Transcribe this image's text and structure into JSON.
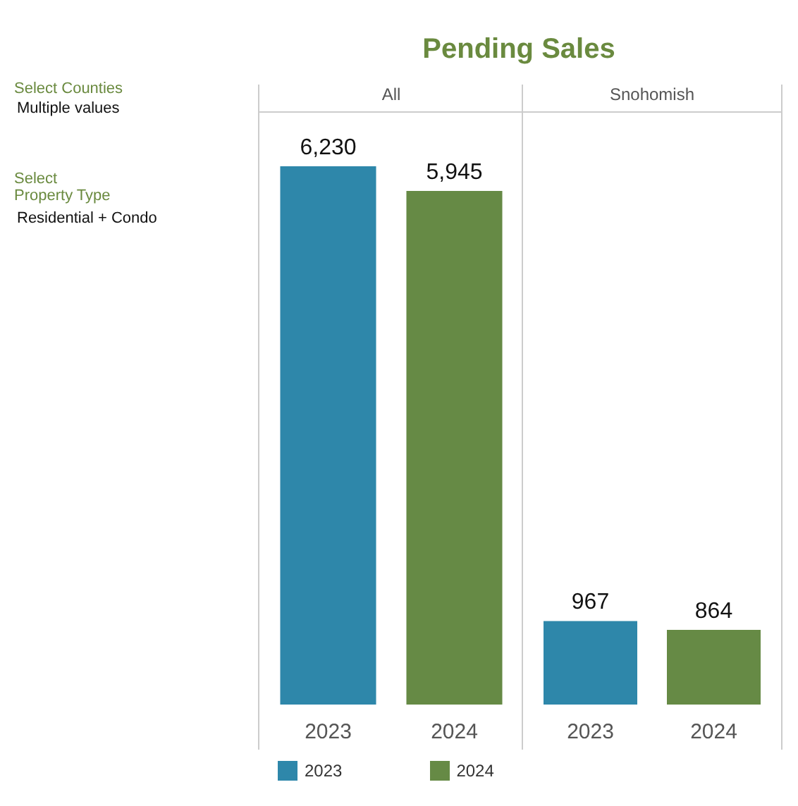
{
  "chart_data": [
    {
      "type": "bar",
      "title": "Pending Sales",
      "subtitle": "All",
      "categories": [
        "2023",
        "2024"
      ],
      "series": [
        {
          "name": "2023",
          "color": "#2e87aa",
          "values": [
            6230,
            null
          ],
          "value_labels": [
            "6,230",
            null
          ]
        },
        {
          "name": "2024",
          "color": "#668a45",
          "values": [
            null,
            5945
          ],
          "value_labels": [
            null,
            "5,945"
          ]
        }
      ],
      "tick_labels": "x",
      "grid": false,
      "legend": "bottom",
      "annotations": [
        "Select Counties",
        "Multiple values",
        "Select\nProperty Type",
        "Residential + Condo"
      ]
    },
    {
      "type": "bar",
      "subtitle": "Snohomish",
      "categories": [
        "2023",
        "2024"
      ],
      "series": [
        {
          "color": "#2e87aa",
          "values": [
            967,
            null
          ],
          "value_labels": [
            "967",
            null
          ]
        },
        {
          "color": "#668a45",
          "values": [
            null,
            864
          ],
          "value_labels": [
            null,
            "864"
          ]
        }
      ],
      "tick_labels": "x",
      "grid": false,
      "legend": false
    }
  ]
}
